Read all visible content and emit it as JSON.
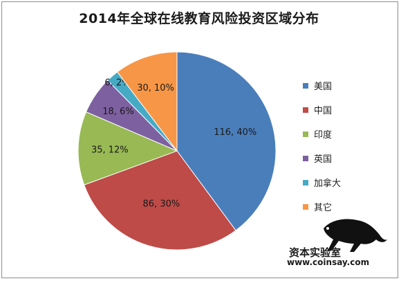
{
  "chart_data": {
    "type": "pie",
    "title": "2014年全球在线教育风险投资区域分布",
    "categories": [
      "美国",
      "中国",
      "印度",
      "英国",
      "加拿大",
      "其它"
    ],
    "values": [
      116,
      86,
      35,
      18,
      6,
      30
    ],
    "labels": [
      "116, 40%",
      "86, 30%",
      "35, 12%",
      "18, 6%",
      "6, 2%",
      "30, 10%"
    ],
    "colors": [
      "#4a7ebb",
      "#be4b48",
      "#98b954",
      "#7d60a0",
      "#46aac5",
      "#f79646"
    ],
    "legend_position": "right"
  },
  "watermark": {
    "brand": "资本实验室",
    "url": "www.coinsay.com",
    "icon": "panther-icon"
  }
}
